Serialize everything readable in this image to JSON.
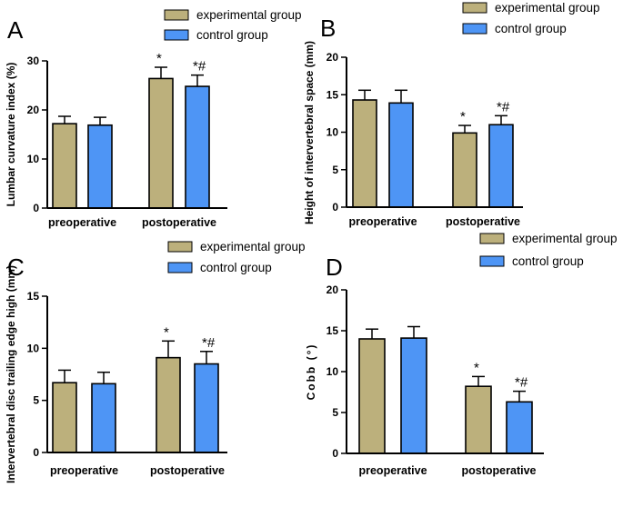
{
  "colors": {
    "experimental": "#bcb07c",
    "control": "#4e95f5",
    "axis": "#000000"
  },
  "chart_data": [
    {
      "type": "bar",
      "panel": "A",
      "ylabel": "Lumbar curvature index (%)",
      "ylim": [
        0,
        30
      ],
      "yticks": [
        0,
        10,
        20,
        30
      ],
      "categories": [
        "preoperative",
        "postoperative"
      ],
      "series": [
        {
          "name": "experimental group",
          "values": [
            17.2,
            26.4
          ],
          "errors": [
            1.5,
            2.3
          ]
        },
        {
          "name": "control group",
          "values": [
            16.9,
            24.8
          ],
          "errors": [
            1.6,
            2.3
          ]
        }
      ],
      "annotations": [
        [
          "",
          "*"
        ],
        [
          "",
          "*#"
        ]
      ]
    },
    {
      "type": "bar",
      "panel": "B",
      "ylabel": "Height of intervertebral space (mm)",
      "ylim": [
        0,
        20
      ],
      "yticks": [
        0,
        5,
        10,
        15,
        20
      ],
      "categories": [
        "preoperative",
        "postoperative"
      ],
      "series": [
        {
          "name": "experimental group",
          "values": [
            14.3,
            9.9
          ],
          "errors": [
            1.3,
            1.0
          ]
        },
        {
          "name": "control group",
          "values": [
            13.9,
            11.0
          ],
          "errors": [
            1.7,
            1.2
          ]
        }
      ],
      "annotations": [
        [
          "",
          "*"
        ],
        [
          "",
          "*#"
        ]
      ]
    },
    {
      "type": "bar",
      "panel": "C",
      "ylabel": "Intervertebral disc trailing edge high (mm)",
      "ylim": [
        0,
        15
      ],
      "yticks": [
        0,
        5,
        10,
        15
      ],
      "categories": [
        "preoperative",
        "postoperative"
      ],
      "series": [
        {
          "name": "experimental group",
          "values": [
            6.7,
            9.1
          ],
          "errors": [
            1.2,
            1.6
          ]
        },
        {
          "name": "control group",
          "values": [
            6.6,
            8.5
          ],
          "errors": [
            1.1,
            1.2
          ]
        }
      ],
      "annotations": [
        [
          "",
          "*"
        ],
        [
          "",
          "*#"
        ]
      ]
    },
    {
      "type": "bar",
      "panel": "D",
      "ylabel": "Cobb (°)",
      "ylim": [
        0,
        20
      ],
      "yticks": [
        0,
        5,
        10,
        15,
        20
      ],
      "categories": [
        "preoperative",
        "postoperative"
      ],
      "series": [
        {
          "name": "experimental group",
          "values": [
            14.0,
            8.2
          ],
          "errors": [
            1.2,
            1.2
          ]
        },
        {
          "name": "control group",
          "values": [
            14.1,
            6.3
          ],
          "errors": [
            1.4,
            1.3
          ]
        }
      ],
      "annotations": [
        [
          "",
          "*"
        ],
        [
          "",
          "*#"
        ]
      ]
    }
  ]
}
